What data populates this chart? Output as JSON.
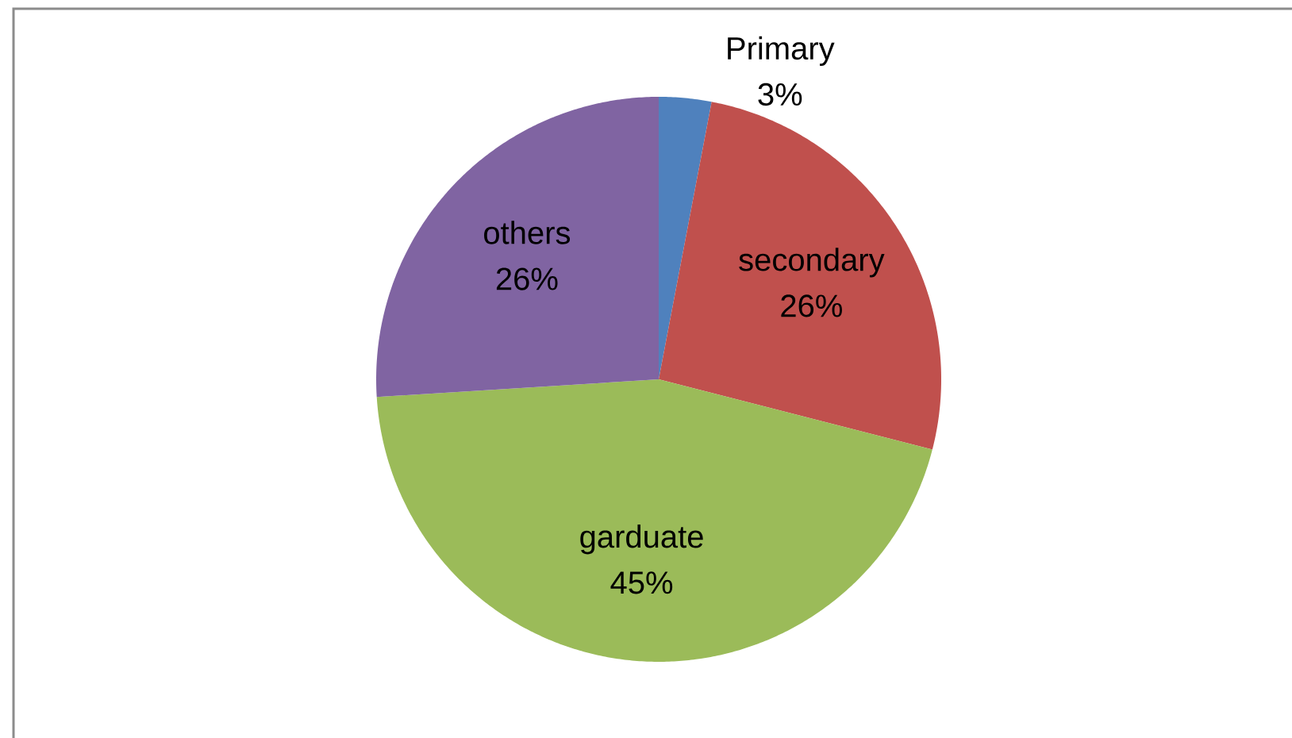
{
  "chart_data": {
    "type": "pie",
    "categories": [
      "Primary",
      "secondary",
      "garduate",
      "others"
    ],
    "values": [
      3,
      26,
      45,
      26
    ],
    "colors": [
      "#4f81bd",
      "#c0504d",
      "#9bbb59",
      "#8064a2"
    ],
    "value_labels": [
      "3%",
      "26%",
      "45%",
      "26%"
    ]
  }
}
